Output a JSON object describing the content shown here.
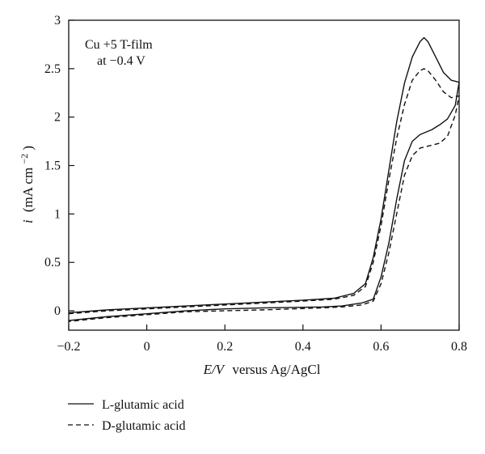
{
  "chart_data": {
    "type": "line",
    "xlabel": {
      "italic_var": "E/V",
      "rest": "versus Ag/AgCl"
    },
    "ylabel": {
      "var": "i",
      "unit_pre": "(mA cm",
      "unit_sup": "−2",
      "unit_post": ")"
    },
    "xlim": [
      -0.2,
      0.8
    ],
    "ylim": [
      -0.2,
      3.0
    ],
    "x_ticks": [
      -0.2,
      0,
      0.2,
      0.4,
      0.6,
      0.8
    ],
    "x_tick_labels": [
      "−0.2",
      "0",
      "0.2",
      "0.4",
      "0.6",
      "0.8"
    ],
    "y_ticks": [
      0,
      0.5,
      1,
      1.5,
      2,
      2.5,
      3
    ],
    "y_tick_labels": [
      "0",
      "0.5",
      "1",
      "1.5",
      "2",
      "2.5",
      "3"
    ],
    "annotation": [
      "Cu +5 T-film",
      "at −0.4 V"
    ],
    "grid": false,
    "legend_position": "below-left",
    "series": [
      {
        "name": "L-glutamic acid",
        "style": "solid",
        "color": "#111111",
        "forward": [
          [
            -0.2,
            -0.02
          ],
          [
            -0.1,
            0.01
          ],
          [
            0.0,
            0.03
          ],
          [
            0.1,
            0.05
          ],
          [
            0.2,
            0.07
          ],
          [
            0.3,
            0.09
          ],
          [
            0.4,
            0.11
          ],
          [
            0.48,
            0.13
          ],
          [
            0.53,
            0.18
          ],
          [
            0.56,
            0.28
          ],
          [
            0.58,
            0.55
          ],
          [
            0.6,
            0.95
          ],
          [
            0.62,
            1.45
          ],
          [
            0.64,
            1.95
          ],
          [
            0.66,
            2.35
          ],
          [
            0.68,
            2.62
          ],
          [
            0.7,
            2.78
          ],
          [
            0.71,
            2.82
          ],
          [
            0.72,
            2.78
          ],
          [
            0.74,
            2.62
          ],
          [
            0.76,
            2.46
          ],
          [
            0.78,
            2.38
          ],
          [
            0.8,
            2.36
          ]
        ],
        "reverse": [
          [
            0.8,
            2.36
          ],
          [
            0.79,
            2.12
          ],
          [
            0.77,
            1.98
          ],
          [
            0.75,
            1.92
          ],
          [
            0.73,
            1.87
          ],
          [
            0.7,
            1.82
          ],
          [
            0.68,
            1.75
          ],
          [
            0.66,
            1.55
          ],
          [
            0.64,
            1.15
          ],
          [
            0.62,
            0.7
          ],
          [
            0.6,
            0.35
          ],
          [
            0.58,
            0.12
          ],
          [
            0.55,
            0.08
          ],
          [
            0.5,
            0.05
          ],
          [
            0.45,
            0.04
          ],
          [
            0.3,
            0.03
          ],
          [
            0.2,
            0.02
          ],
          [
            0.1,
            0.0
          ],
          [
            0.0,
            -0.03
          ],
          [
            -0.1,
            -0.06
          ],
          [
            -0.2,
            -0.1
          ]
        ]
      },
      {
        "name": "D-glutamic acid",
        "style": "dashed",
        "color": "#111111",
        "forward": [
          [
            -0.2,
            -0.03
          ],
          [
            -0.1,
            0.0
          ],
          [
            0.0,
            0.02
          ],
          [
            0.1,
            0.04
          ],
          [
            0.2,
            0.06
          ],
          [
            0.3,
            0.08
          ],
          [
            0.4,
            0.1
          ],
          [
            0.48,
            0.12
          ],
          [
            0.53,
            0.16
          ],
          [
            0.56,
            0.25
          ],
          [
            0.58,
            0.5
          ],
          [
            0.6,
            0.88
          ],
          [
            0.62,
            1.35
          ],
          [
            0.64,
            1.78
          ],
          [
            0.66,
            2.13
          ],
          [
            0.68,
            2.38
          ],
          [
            0.7,
            2.48
          ],
          [
            0.71,
            2.5
          ],
          [
            0.72,
            2.48
          ],
          [
            0.74,
            2.38
          ],
          [
            0.76,
            2.26
          ],
          [
            0.78,
            2.2
          ],
          [
            0.8,
            2.22
          ]
        ],
        "reverse": [
          [
            0.8,
            2.22
          ],
          [
            0.79,
            2.02
          ],
          [
            0.77,
            1.8
          ],
          [
            0.75,
            1.73
          ],
          [
            0.73,
            1.71
          ],
          [
            0.7,
            1.68
          ],
          [
            0.68,
            1.6
          ],
          [
            0.66,
            1.4
          ],
          [
            0.64,
            1.0
          ],
          [
            0.62,
            0.6
          ],
          [
            0.6,
            0.28
          ],
          [
            0.58,
            0.1
          ],
          [
            0.55,
            0.06
          ],
          [
            0.5,
            0.04
          ],
          [
            0.45,
            0.03
          ],
          [
            0.3,
            0.01
          ],
          [
            0.2,
            0.0
          ],
          [
            0.1,
            -0.01
          ],
          [
            0.0,
            -0.04
          ],
          [
            -0.1,
            -0.07
          ],
          [
            -0.2,
            -0.11
          ]
        ]
      }
    ]
  }
}
